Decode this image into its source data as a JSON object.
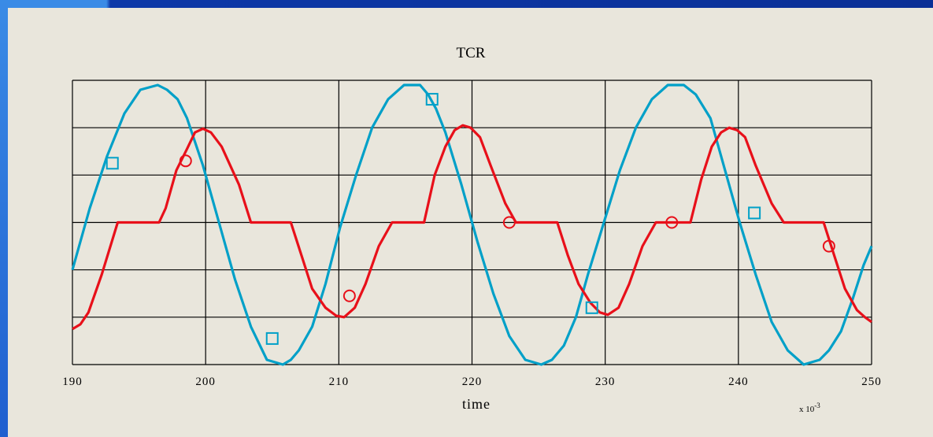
{
  "colors": {
    "frame_light": "#3a8be6",
    "frame_dark": "#0a2f96",
    "background": "#e9e6dc"
  },
  "chart_data": {
    "type": "line",
    "title": "TCR",
    "xlabel": "time",
    "ylabel": "",
    "x_multiplier": "x 10",
    "x_multiplier_exp": "-3",
    "xlim": [
      190,
      250
    ],
    "ylim": [
      -3,
      3
    ],
    "x_ticks": [
      190,
      200,
      210,
      220,
      230,
      240,
      250
    ],
    "x_tick_labels": [
      "190",
      "200",
      "210",
      "220",
      "230",
      "240",
      "250"
    ],
    "y_gridlines": [
      -2,
      -1,
      0,
      1,
      2
    ],
    "grid": true,
    "series": [
      {
        "color": "#00a0c8",
        "marker": "square",
        "x": [
          190,
          191.3,
          192.6,
          193.9,
          195.1,
          196.4,
          197.1,
          197.9,
          198.6,
          199.8,
          201.0,
          202.2,
          203.4,
          204.6,
          205.8,
          206.4,
          207.0,
          208.0,
          209.0,
          210.1,
          211.3,
          212.5,
          213.7,
          214.9,
          216.1,
          216.7,
          217.3,
          218.0,
          219.2,
          220.4,
          221.6,
          222.8,
          224.0,
          225.2,
          226.0,
          226.9,
          227.8,
          228.7,
          229.9,
          231.1,
          232.3,
          233.5,
          234.7,
          235.9,
          236.8,
          237.9,
          239.0,
          240.1,
          241.3,
          242.5,
          243.7,
          244.9,
          246.1,
          246.8,
          247.7,
          248.6,
          249.4,
          250
        ],
        "y": [
          -1.0,
          0.3,
          1.4,
          2.3,
          2.8,
          2.9,
          2.8,
          2.6,
          2.2,
          1.2,
          0.0,
          -1.2,
          -2.2,
          -2.9,
          -3.0,
          -2.9,
          -2.7,
          -2.2,
          -1.3,
          -0.1,
          1.0,
          2.0,
          2.6,
          2.9,
          2.9,
          2.7,
          2.4,
          1.9,
          0.8,
          -0.4,
          -1.5,
          -2.4,
          -2.9,
          -3.0,
          -2.9,
          -2.6,
          -2.0,
          -1.1,
          0.0,
          1.1,
          2.0,
          2.6,
          2.9,
          2.9,
          2.7,
          2.2,
          1.1,
          0.0,
          -1.1,
          -2.1,
          -2.7,
          -3.0,
          -2.9,
          -2.7,
          -2.3,
          -1.6,
          -0.9,
          -0.5
        ],
        "markers": [
          [
            193,
            1.25
          ],
          [
            205,
            -2.45
          ],
          [
            217,
            2.6
          ],
          [
            229,
            -1.8
          ],
          [
            241.2,
            0.2
          ]
        ]
      },
      {
        "color": "#e8101a",
        "marker": "circle",
        "x": [
          190,
          190.6,
          191.2,
          192.2,
          193.4,
          194.4,
          196.5,
          197.0,
          197.8,
          198.6,
          199.2,
          199.8,
          200.4,
          201.2,
          202.5,
          203.4,
          206.4,
          207.2,
          208.0,
          209.0,
          209.8,
          210.4,
          211.2,
          212.0,
          213.0,
          214.0,
          216.4,
          217.2,
          218.0,
          218.7,
          219.3,
          219.9,
          220.6,
          221.4,
          222.5,
          223.3,
          226.4,
          227.2,
          228.0,
          228.9,
          229.6,
          230.2,
          231.0,
          231.8,
          232.8,
          233.8,
          236.4,
          237.2,
          238.0,
          238.7,
          239.3,
          239.9,
          240.5,
          241.3,
          242.5,
          243.4,
          246.4,
          247.2,
          248.0,
          248.9,
          249.5,
          250
        ],
        "y": [
          -2.25,
          -2.15,
          -1.9,
          -1.1,
          0.0,
          0.0,
          0.0,
          0.3,
          1.1,
          1.55,
          1.9,
          1.98,
          1.9,
          1.6,
          0.8,
          0.0,
          0.0,
          -0.7,
          -1.4,
          -1.8,
          -1.97,
          -2.0,
          -1.8,
          -1.3,
          -0.5,
          0.0,
          0.0,
          1.0,
          1.6,
          1.95,
          2.05,
          2.0,
          1.8,
          1.2,
          0.4,
          0.0,
          0.0,
          -0.7,
          -1.3,
          -1.7,
          -1.9,
          -1.95,
          -1.8,
          -1.3,
          -0.5,
          0.0,
          0.0,
          0.9,
          1.6,
          1.9,
          2.0,
          1.95,
          1.8,
          1.2,
          0.4,
          0.0,
          0.0,
          -0.7,
          -1.4,
          -1.85,
          -2.0,
          -2.1
        ],
        "markers": [
          [
            198.5,
            1.3
          ],
          [
            210.8,
            -1.55
          ],
          [
            222.8,
            0.0
          ],
          [
            235,
            0.0
          ],
          [
            246.8,
            -0.5
          ]
        ]
      }
    ]
  }
}
